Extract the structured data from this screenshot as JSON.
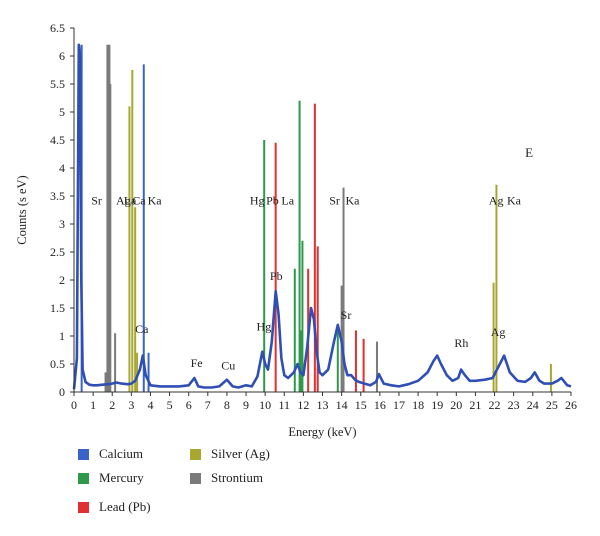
{
  "chart_data": {
    "type": "line",
    "panel_label": "E",
    "xlabel": "Energy (keV)",
    "ylabel": "Counts (s eV)",
    "xlim": [
      0,
      26
    ],
    "ylim": [
      0,
      6.5
    ],
    "x_ticks": [
      "0",
      "1",
      "2",
      "3",
      "4",
      "5",
      "6",
      "7",
      "8",
      "9",
      "10",
      "11",
      "12",
      "13",
      "14",
      "15",
      "16",
      "17",
      "18",
      "19",
      "20",
      "21",
      "22",
      "23",
      "24",
      "25",
      "26"
    ],
    "y_ticks": [
      "0",
      "0.5",
      "1",
      "1.5",
      "2",
      "2.5",
      "3",
      "3.5",
      "4",
      "4.5",
      "5",
      "5.5",
      "6",
      "6.5"
    ],
    "grid": false,
    "legend_position": "bottom",
    "spectrum": {
      "color": "#2f4fb5",
      "x": [
        0.0,
        0.15,
        0.25,
        0.32,
        0.38,
        0.45,
        0.6,
        0.8,
        1.0,
        1.2,
        1.5,
        1.8,
        2.0,
        2.2,
        2.5,
        2.8,
        3.0,
        3.2,
        3.45,
        3.6,
        3.75,
        4.0,
        4.5,
        5.0,
        5.5,
        6.0,
        6.3,
        6.5,
        6.8,
        7.2,
        7.6,
        8.0,
        8.3,
        8.6,
        9.0,
        9.3,
        9.6,
        9.85,
        10.0,
        10.15,
        10.35,
        10.55,
        10.7,
        10.85,
        11.0,
        11.2,
        11.5,
        11.7,
        11.85,
        12.0,
        12.2,
        12.4,
        12.55,
        12.7,
        12.85,
        13.0,
        13.3,
        13.6,
        13.8,
        14.0,
        14.15,
        14.3,
        14.5,
        14.7,
        14.9,
        15.2,
        15.5,
        15.8,
        15.95,
        16.2,
        16.6,
        17.0,
        17.5,
        18.0,
        18.5,
        18.8,
        19.0,
        19.2,
        19.5,
        19.8,
        20.1,
        20.25,
        20.45,
        20.7,
        21.0,
        21.5,
        21.9,
        22.2,
        22.5,
        22.8,
        23.2,
        23.6,
        23.9,
        24.1,
        24.35,
        24.6,
        25.0,
        25.3,
        25.5,
        25.8,
        26.0
      ],
      "y": [
        0.05,
        0.6,
        6.2,
        6.0,
        2.0,
        0.4,
        0.18,
        0.13,
        0.12,
        0.12,
        0.13,
        0.14,
        0.15,
        0.17,
        0.15,
        0.14,
        0.15,
        0.2,
        0.4,
        0.65,
        0.3,
        0.12,
        0.1,
        0.1,
        0.1,
        0.12,
        0.25,
        0.1,
        0.08,
        0.08,
        0.1,
        0.22,
        0.1,
        0.08,
        0.12,
        0.1,
        0.28,
        0.72,
        0.5,
        0.4,
        0.9,
        1.8,
        1.4,
        0.6,
        0.3,
        0.25,
        0.35,
        0.5,
        0.35,
        0.3,
        0.8,
        1.5,
        1.3,
        0.7,
        0.35,
        0.3,
        0.4,
        0.9,
        1.2,
        0.9,
        0.5,
        0.3,
        0.3,
        0.22,
        0.18,
        0.15,
        0.12,
        0.18,
        0.32,
        0.15,
        0.12,
        0.1,
        0.14,
        0.2,
        0.35,
        0.55,
        0.65,
        0.5,
        0.3,
        0.2,
        0.25,
        0.4,
        0.3,
        0.2,
        0.2,
        0.22,
        0.25,
        0.45,
        0.65,
        0.35,
        0.2,
        0.18,
        0.25,
        0.35,
        0.2,
        0.15,
        0.15,
        0.2,
        0.25,
        0.12,
        0.1
      ]
    },
    "series": [
      {
        "name": "Calcium",
        "color": "#3a63c9",
        "lines": [
          [
            0.4,
            6.2
          ],
          [
            3.65,
            5.85
          ],
          [
            3.9,
            0.7
          ]
        ]
      },
      {
        "name": "Mercury",
        "color": "#2c9a49",
        "lines": [
          [
            9.95,
            4.5
          ],
          [
            11.8,
            5.2
          ],
          [
            11.95,
            2.7
          ],
          [
            11.55,
            2.2
          ],
          [
            11.9,
            1.1
          ],
          [
            13.8,
            1.1
          ]
        ]
      },
      {
        "name": "Lead (Pb)",
        "color": "#e03030",
        "lines": [
          [
            10.55,
            4.45
          ],
          [
            12.6,
            5.15
          ],
          [
            12.75,
            2.6
          ],
          [
            12.25,
            2.2
          ],
          [
            14.75,
            1.1
          ],
          [
            15.15,
            0.95
          ]
        ]
      },
      {
        "name": "Silver (Ag)",
        "color": "#a8a830",
        "lines": [
          [
            2.9,
            5.1
          ],
          [
            3.05,
            5.75
          ],
          [
            3.2,
            3.3
          ],
          [
            3.3,
            0.7
          ],
          [
            21.95,
            1.95
          ],
          [
            22.1,
            3.7
          ],
          [
            24.95,
            0.5
          ]
        ]
      },
      {
        "name": "Strontium",
        "color": "#7a7a7a",
        "lines": [
          [
            1.8,
            6.2
          ],
          [
            1.9,
            5.5
          ],
          [
            1.65,
            0.35
          ],
          [
            2.15,
            1.05
          ],
          [
            14.1,
            3.65
          ],
          [
            14.0,
            1.9
          ],
          [
            15.85,
            0.9
          ]
        ]
      }
    ],
    "annotations": [
      {
        "text": "Sr",
        "x": 0.9,
        "y": 3.35
      },
      {
        "text": "Ag",
        "x": 2.2,
        "y": 3.35
      },
      {
        "text": "La",
        "x": 2.6,
        "y": 3.35
      },
      {
        "text": "Ca",
        "x": 3.05,
        "y": 3.35
      },
      {
        "text": "Ka",
        "x": 3.85,
        "y": 3.35
      },
      {
        "text": "Hg",
        "x": 9.2,
        "y": 3.35
      },
      {
        "text": "Pb",
        "x": 10.05,
        "y": 3.35
      },
      {
        "text": "La",
        "x": 10.85,
        "y": 3.35
      },
      {
        "text": "Sr",
        "x": 13.35,
        "y": 3.35
      },
      {
        "text": "Ka",
        "x": 14.2,
        "y": 3.35
      },
      {
        "text": "Ag",
        "x": 21.7,
        "y": 3.35
      },
      {
        "text": "Ka",
        "x": 22.65,
        "y": 3.35
      },
      {
        "text": "Pb",
        "x": 10.25,
        "y": 2.0
      },
      {
        "text": "Ca",
        "x": 3.2,
        "y": 1.05
      },
      {
        "text": "Hg",
        "x": 9.55,
        "y": 1.1
      },
      {
        "text": "Sr",
        "x": 13.95,
        "y": 1.3
      },
      {
        "text": "Fe",
        "x": 6.1,
        "y": 0.45
      },
      {
        "text": "Cu",
        "x": 7.7,
        "y": 0.4
      },
      {
        "text": "Rh",
        "x": 19.9,
        "y": 0.8
      },
      {
        "text": "Ag",
        "x": 21.8,
        "y": 1.0
      }
    ]
  },
  "legend": {
    "items": [
      {
        "label": "Calcium",
        "color": "#3a63c9"
      },
      {
        "label": "Silver (Ag)",
        "color": "#a8a830"
      },
      {
        "label": "Mercury",
        "color": "#2c9a49"
      },
      {
        "label": "Strontium",
        "color": "#7a7a7a"
      },
      {
        "label": "Lead (Pb)",
        "color": "#e03030"
      }
    ]
  }
}
